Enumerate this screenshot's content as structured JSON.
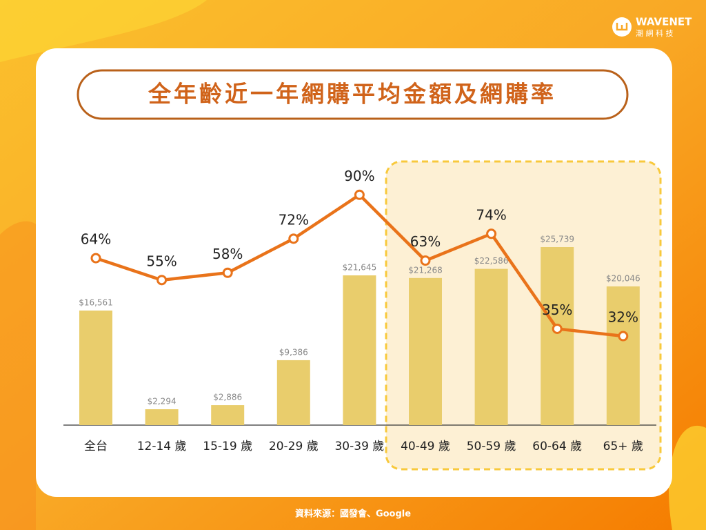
{
  "brand": {
    "name": "WAVENET",
    "subtitle": "潮 網 科 技"
  },
  "source": "資料來源：國發會、Google",
  "chart_data": {
    "type": "bar_line",
    "title": "全年齡近一年網購平均金額及網購率",
    "categories": [
      "全台",
      "12-14 歲",
      "15-19 歲",
      "20-29 歲",
      "30-39 歲",
      "40-49 歲",
      "50-59 歲",
      "60-64 歲",
      "65+ 歲"
    ],
    "bars": {
      "color": "#e9cd6c",
      "values": [
        16561,
        2294,
        2886,
        9386,
        21645,
        21268,
        22586,
        25739,
        20046
      ],
      "value_labels": [
        "$16,561",
        "$2,294",
        "$2,886",
        "$9,386",
        "$21,645",
        "$21,268",
        "$22,586",
        "$25,739",
        "$20,046"
      ]
    },
    "line": {
      "color": "#e9731a",
      "values": [
        64,
        55,
        58,
        72,
        90,
        63,
        74,
        35,
        32
      ],
      "value_labels": [
        "64%",
        "55%",
        "58%",
        "72%",
        "90%",
        "63%",
        "74%",
        "35%",
        "32%"
      ]
    }
  }
}
